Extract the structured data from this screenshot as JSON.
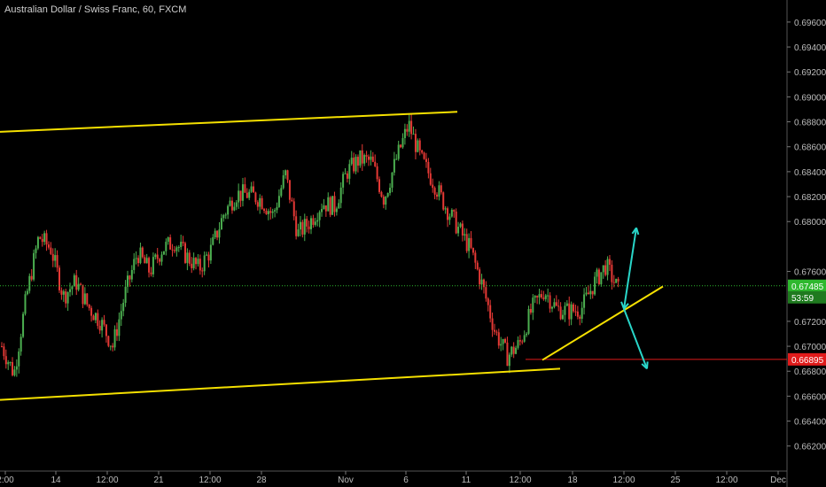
{
  "title": "Australian Dollar / Swiss Franc, 60, FXCM",
  "colors": {
    "background": "#000000",
    "up": "#4caf50",
    "down": "#e53935",
    "trendline": "#f5e000",
    "arrow": "#29d6c9",
    "last_price": "#2eb82e",
    "level": "#e01b1b",
    "axis_text": "#bdbdbd"
  },
  "chart_data": {
    "type": "candlestick",
    "title": "Australian Dollar / Swiss Franc, 60, FXCM",
    "ylim": [
      0.6612,
      0.6972
    ],
    "y_ticks": [
      "0.69600",
      "0.69400",
      "0.69200",
      "0.69000",
      "0.68800",
      "0.68600",
      "0.68400",
      "0.68200",
      "0.68000",
      "0.67600",
      "0.67200",
      "0.67000",
      "0.66800",
      "0.66600",
      "0.66400",
      "0.66200"
    ],
    "x_ticks": [
      "2:00",
      "14",
      "12:00",
      "21",
      "12:00",
      "28",
      "Nov",
      "6",
      "11",
      "12:00",
      "18",
      "12:00",
      "25",
      "12:00",
      "Dec"
    ],
    "price_path": [
      [
        0.67,
        0.6706
      ],
      [
        0.6678,
        0.67
      ],
      [
        0.674,
        0.676
      ],
      [
        0.6788,
        0.6788
      ],
      [
        0.6778,
        0.677
      ],
      [
        0.674,
        0.6728
      ],
      [
        0.6752,
        0.6745
      ],
      [
        0.6732,
        0.674
      ],
      [
        0.672,
        0.6715
      ],
      [
        0.67,
        0.6718
      ],
      [
        0.6742,
        0.6755
      ],
      [
        0.6775,
        0.6768
      ],
      [
        0.676,
        0.6768
      ],
      [
        0.6778,
        0.6782
      ],
      [
        0.6784,
        0.6786
      ],
      [
        0.6772,
        0.677
      ],
      [
        0.6762,
        0.6772
      ],
      [
        0.6778,
        0.6792
      ],
      [
        0.6806,
        0.6812
      ],
      [
        0.6822,
        0.6826
      ],
      [
        0.6822,
        0.6828
      ],
      [
        0.6818,
        0.6825
      ],
      [
        0.6805,
        0.683
      ],
      [
        0.6838,
        0.68
      ],
      [
        0.679,
        0.681
      ],
      [
        0.68,
        0.682
      ],
      [
        0.6815,
        0.6825
      ],
      [
        0.6812,
        0.68
      ],
      [
        0.684,
        0.6855
      ],
      [
        0.685,
        0.6855
      ],
      [
        0.6848,
        0.683
      ],
      [
        0.6818,
        0.6835
      ],
      [
        0.685,
        0.6866
      ],
      [
        0.6878,
        0.686
      ],
      [
        0.685,
        0.684
      ],
      [
        0.6832,
        0.682
      ],
      [
        0.6812,
        0.68
      ],
      [
        0.6795,
        0.679
      ],
      [
        0.6778,
        0.676
      ],
      [
        0.6748,
        0.6735
      ],
      [
        0.6712,
        0.67
      ],
      [
        0.6692,
        0.67
      ],
      [
        0.6702,
        0.672
      ],
      [
        0.673,
        0.6738
      ],
      [
        0.6745,
        0.674
      ],
      [
        0.673,
        0.6742
      ],
      [
        0.6728,
        0.6722
      ],
      [
        0.673,
        0.6738
      ],
      [
        0.675,
        0.6762
      ],
      [
        0.6765,
        0.6755
      ],
      [
        0.6745,
        0.6738
      ]
    ],
    "last_price": 0.67485,
    "last_price_label": "0.67485",
    "countdown_label": "53:59",
    "level_price": 0.66895,
    "level_label": "0.66895",
    "drawings": {
      "upper_channel": [
        [
          0,
          0.6872
        ],
        [
          516,
          0.6888
        ]
      ],
      "lower_channel": [
        [
          0,
          0.6657
        ],
        [
          632,
          0.6682
        ]
      ],
      "rising_trendline": [
        [
          612,
          0.6689
        ],
        [
          748,
          0.6748
        ]
      ],
      "arrow_up": [
        [
          704,
          0.673
        ],
        [
          718,
          0.6795
        ]
      ],
      "arrow_down": [
        [
          704,
          0.673
        ],
        [
          730,
          0.6682
        ]
      ]
    }
  }
}
